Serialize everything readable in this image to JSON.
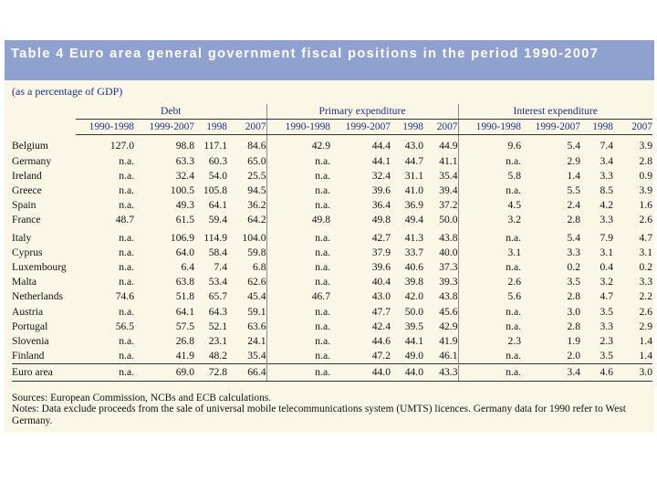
{
  "title": "Table 4 Euro area general government fiscal positions in the period 1990-2007",
  "unit_note": "(as a percentage of GDP)",
  "groups": [
    "Debt",
    "Primary expenditure",
    "Interest expenditure"
  ],
  "subheaders": [
    "1990-1998",
    "1999-2007",
    "1998",
    "2007",
    "1990-1998",
    "1999-2007",
    "1998",
    "2007",
    "1990-1998",
    "1999-2007",
    "1998",
    "2007"
  ],
  "rows": [
    {
      "country": "Belgium",
      "values": [
        "127.0",
        "98.8",
        "117.1",
        "84.6",
        "42.9",
        "44.4",
        "43.0",
        "44.9",
        "9.6",
        "5.4",
        "7.4",
        "3.9"
      ]
    },
    {
      "country": "Germany",
      "values": [
        "n.a.",
        "63.3",
        "60.3",
        "65.0",
        "n.a.",
        "44.1",
        "44.7",
        "41.1",
        "n.a.",
        "2.9",
        "3.4",
        "2.8"
      ]
    },
    {
      "country": "Ireland",
      "values": [
        "n.a.",
        "32.4",
        "54.0",
        "25.5",
        "n.a.",
        "32.4",
        "31.1",
        "35.4",
        "5.8",
        "1.4",
        "3.3",
        "0.9"
      ]
    },
    {
      "country": "Greece",
      "values": [
        "n.a.",
        "100.5",
        "105.8",
        "94.5",
        "n.a.",
        "39.6",
        "41.0",
        "39.4",
        "n.a.",
        "5.5",
        "8.5",
        "3.9"
      ]
    },
    {
      "country": "Spain",
      "values": [
        "n.a.",
        "49.3",
        "64.1",
        "36.2",
        "n.a.",
        "36.4",
        "36.9",
        "37.2",
        "4.5",
        "2.4",
        "4.2",
        "1.6"
      ]
    },
    {
      "country": "France",
      "values": [
        "48.7",
        "61.5",
        "59.4",
        "64.2",
        "49.8",
        "49.8",
        "49.4",
        "50.0",
        "3.2",
        "2.8",
        "3.3",
        "2.6"
      ]
    },
    {
      "country": "Italy",
      "values": [
        "n.a.",
        "106.9",
        "114.9",
        "104.0",
        "n.a.",
        "42.7",
        "41.3",
        "43.8",
        "n.a.",
        "5.4",
        "7.9",
        "4.7"
      ]
    },
    {
      "country": "Cyprus",
      "values": [
        "n.a.",
        "64.0",
        "58.4",
        "59.8",
        "n.a.",
        "37.9",
        "33.7",
        "40.0",
        "3.1",
        "3.3",
        "3.1",
        "3.1"
      ]
    },
    {
      "country": "Luxembourg",
      "values": [
        "n.a.",
        "6.4",
        "7.4",
        "6.8",
        "n.a.",
        "39.6",
        "40.6",
        "37.3",
        "n.a.",
        "0.2",
        "0.4",
        "0.2"
      ]
    },
    {
      "country": "Malta",
      "values": [
        "n.a.",
        "63.8",
        "53.4",
        "62.6",
        "n.a.",
        "40.4",
        "39.8",
        "39.3",
        "2.6",
        "3.5",
        "3.2",
        "3.3"
      ]
    },
    {
      "country": "Netherlands",
      "values": [
        "74.6",
        "51.8",
        "65.7",
        "45.4",
        "46.7",
        "43.0",
        "42.0",
        "43.8",
        "5.6",
        "2.8",
        "4.7",
        "2.2"
      ]
    },
    {
      "country": "Austria",
      "values": [
        "n.a.",
        "64.1",
        "64.3",
        "59.1",
        "n.a.",
        "47.7",
        "50.0",
        "45.6",
        "n.a.",
        "3.0",
        "3.5",
        "2.6"
      ]
    },
    {
      "country": "Portugal",
      "values": [
        "56.5",
        "57.5",
        "52.1",
        "63.6",
        "n.a.",
        "42.4",
        "39.5",
        "42.9",
        "n.a.",
        "2.8",
        "3.3",
        "2.9"
      ]
    },
    {
      "country": "Slovenia",
      "values": [
        "n.a.",
        "26.8",
        "23.1",
        "24.1",
        "n.a.",
        "44.6",
        "44.1",
        "41.9",
        "2.3",
        "1.9",
        "2.3",
        "1.4"
      ]
    },
    {
      "country": "Finland",
      "values": [
        "n.a.",
        "41.9",
        "48.2",
        "35.4",
        "n.a.",
        "47.2",
        "49.0",
        "46.1",
        "n.a.",
        "2.0",
        "3.5",
        "1.4"
      ]
    }
  ],
  "total": {
    "country": "Euro area",
    "values": [
      "n.a.",
      "69.0",
      "72.8",
      "66.4",
      "n.a.",
      "44.0",
      "44.0",
      "43.3",
      "n.a.",
      "3.4",
      "4.6",
      "3.0"
    ]
  },
  "sources": "Sources: European Commission, NCBs and ECB calculations.",
  "notes": "Notes: Data exclude proceeds from the sale of universal mobile telecommunications system (UMTS) licences. Germany data for 1990 refer to West Germany.",
  "colors": {
    "title_bar": "#8fa2cf",
    "panel": "#fbf7e7",
    "header_text": "#1b2f8a"
  }
}
